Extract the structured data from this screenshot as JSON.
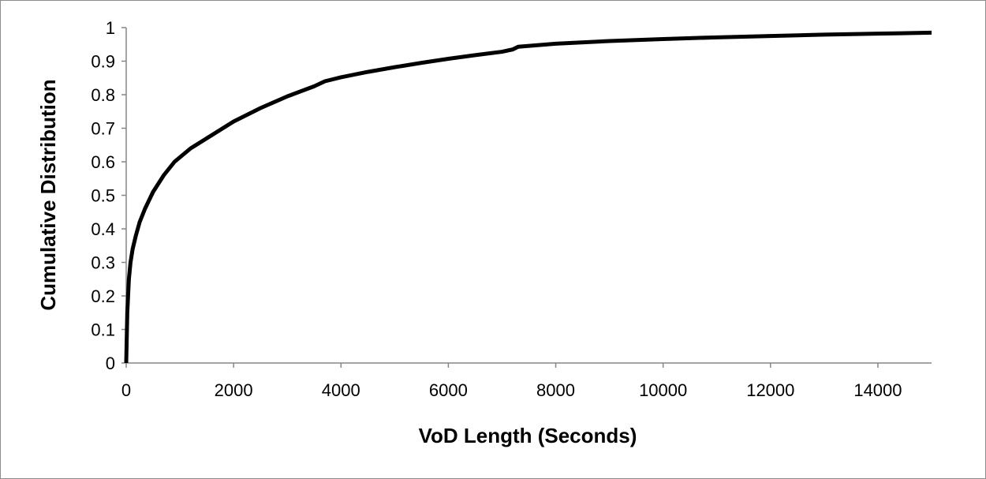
{
  "chart_data": {
    "type": "line",
    "title": "",
    "xlabel": "VoD Length (Seconds)",
    "ylabel": "Cumulative Distribution",
    "xlim": [
      0,
      15000
    ],
    "ylim": [
      0,
      1
    ],
    "x_ticks": [
      0,
      2000,
      4000,
      6000,
      8000,
      10000,
      12000,
      14000
    ],
    "y_ticks": [
      0,
      0.1,
      0.2,
      0.3,
      0.4,
      0.5,
      0.6,
      0.7,
      0.8,
      0.9,
      1
    ],
    "x_tick_labels": [
      "0",
      "2000",
      "4000",
      "6000",
      "8000",
      "10000",
      "12000",
      "14000"
    ],
    "y_tick_labels": [
      "0",
      "0.1",
      "0.2",
      "0.3",
      "0.4",
      "0.5",
      "0.6",
      "0.7",
      "0.8",
      "0.9",
      "1"
    ],
    "grid": false,
    "legend": "none",
    "line_color": "#000000",
    "series": [
      {
        "x": [
          0,
          20,
          50,
          80,
          120,
          180,
          250,
          350,
          500,
          700,
          900,
          1200,
          1500,
          1800,
          2000,
          2500,
          3000,
          3500,
          3700,
          4000,
          4500,
          5000,
          5500,
          6000,
          6500,
          7000,
          7200,
          7300,
          8000,
          9000,
          10000,
          11000,
          12000,
          13000,
          14000,
          15000
        ],
        "y": [
          0,
          0.15,
          0.25,
          0.3,
          0.34,
          0.38,
          0.42,
          0.46,
          0.51,
          0.56,
          0.6,
          0.64,
          0.67,
          0.7,
          0.72,
          0.76,
          0.795,
          0.825,
          0.84,
          0.852,
          0.868,
          0.882,
          0.895,
          0.907,
          0.918,
          0.928,
          0.935,
          0.943,
          0.952,
          0.96,
          0.966,
          0.971,
          0.975,
          0.979,
          0.982,
          0.985
        ]
      }
    ]
  }
}
